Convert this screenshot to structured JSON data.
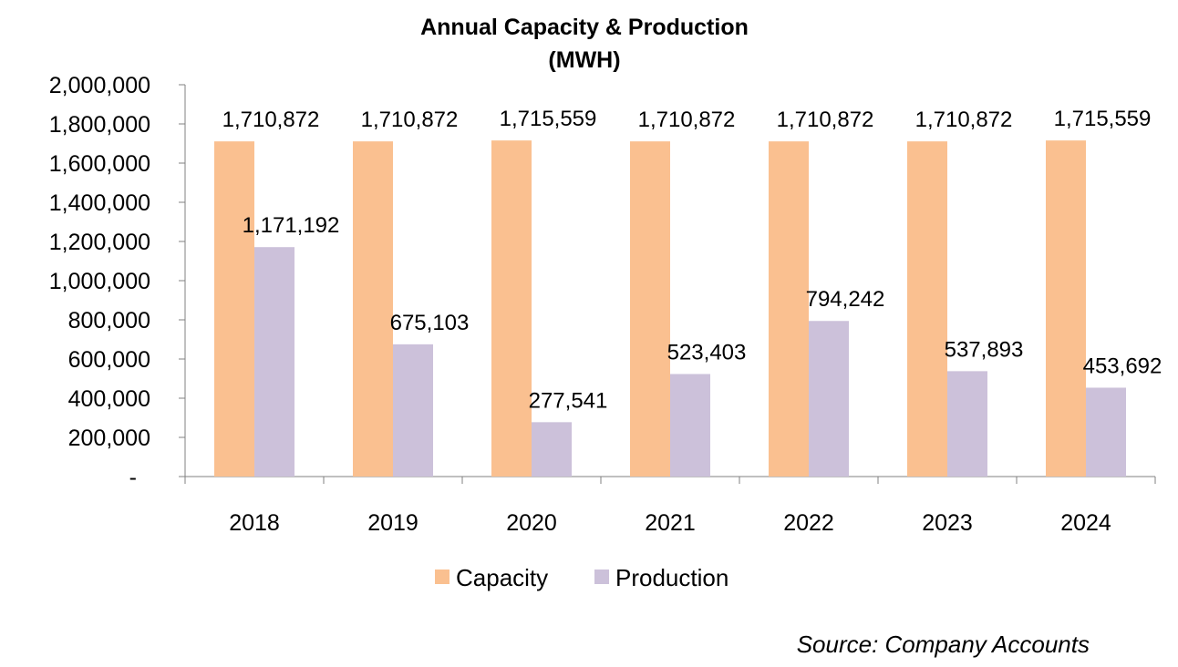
{
  "chart_data": {
    "type": "bar",
    "title": "Annual Capacity & Production",
    "subtitle": "(MWH)",
    "categories": [
      "2018",
      "2019",
      "2020",
      "2021",
      "2022",
      "2023",
      "2024"
    ],
    "series": [
      {
        "name": "Capacity",
        "color": "#FAC090",
        "values": [
          1710872,
          1710872,
          1715559,
          1710872,
          1710872,
          1710872,
          1715559
        ]
      },
      {
        "name": "Production",
        "color": "#CCC1DA",
        "values": [
          1171192,
          675103,
          277541,
          523403,
          794242,
          537893,
          453692
        ]
      }
    ],
    "ylim": [
      0,
      2000000
    ],
    "yticks": [
      0,
      200000,
      400000,
      600000,
      800000,
      1000000,
      1200000,
      1400000,
      1600000,
      1800000,
      2000000
    ],
    "ytick_labels": [
      "-",
      "200,000",
      "400,000",
      "600,000",
      "800,000",
      "1,000,000",
      "1,200,000",
      "1,400,000",
      "1,600,000",
      "1,800,000",
      "2,000,000"
    ],
    "data_labels": [
      [
        "1,710,872",
        "1,710,872",
        "1,715,559",
        "1,710,872",
        "1,710,872",
        "1,710,872",
        "1,715,559"
      ],
      [
        "1,171,192",
        "675,103",
        "277,541",
        "523,403",
        "794,242",
        "537,893",
        "453,692"
      ]
    ],
    "grid": false,
    "legend_position": "bottom",
    "source": "Source: Company Accounts"
  }
}
